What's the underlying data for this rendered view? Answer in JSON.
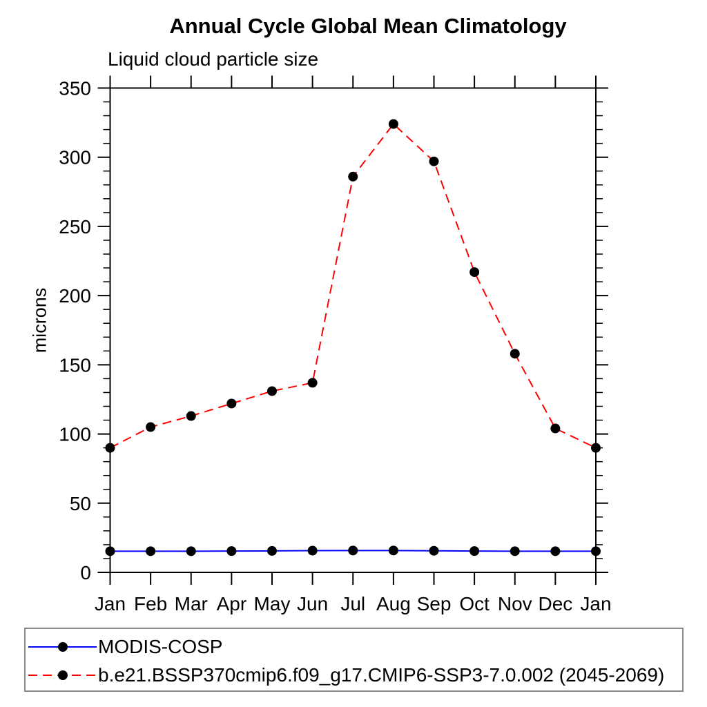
{
  "chart_data": {
    "type": "line",
    "title": "Annual Cycle Global Mean Climatology",
    "subtitle": "Liquid cloud particle size",
    "ylabel": "microns",
    "xlabel": "",
    "ylim": [
      0,
      350
    ],
    "ytick_major_step": 50,
    "ytick_minor_step": 10,
    "yticks": [
      0,
      50,
      100,
      150,
      200,
      250,
      300,
      350
    ],
    "grid": false,
    "legend_position": "bottom-left-box",
    "categories": [
      "Jan",
      "Feb",
      "Mar",
      "Apr",
      "May",
      "Jun",
      "Jul",
      "Aug",
      "Sep",
      "Oct",
      "Nov",
      "Dec",
      "Jan"
    ],
    "series": [
      {
        "name": "MODIS-COSP",
        "color": "#0000ff",
        "line_style": "solid",
        "marker": "circle",
        "marker_color": "#000000",
        "values": [
          15.3,
          15.3,
          15.3,
          15.4,
          15.5,
          15.7,
          15.8,
          15.8,
          15.6,
          15.4,
          15.3,
          15.3,
          15.3
        ]
      },
      {
        "name": "b.e21.BSSP370cmip6.f09_g17.CMIP6-SSP3-7.0.002 (2045-2069)",
        "color": "#ff0000",
        "line_style": "dashed",
        "marker": "circle",
        "marker_color": "#000000",
        "values": [
          90,
          105,
          113,
          122,
          131,
          137,
          286,
          324,
          297,
          217,
          158,
          104,
          90
        ]
      }
    ]
  }
}
